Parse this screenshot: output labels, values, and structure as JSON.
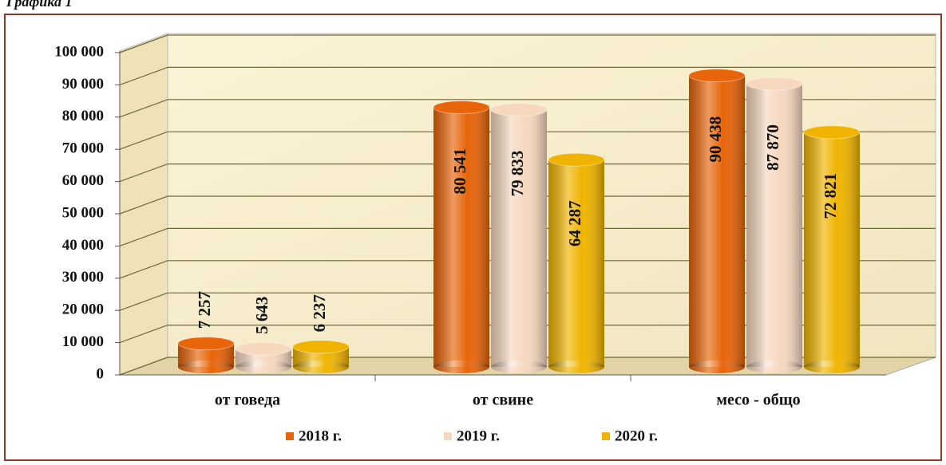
{
  "chart_data": {
    "type": "bar3d-cylinder",
    "caption": "Графика 1",
    "categories": [
      "от говеда",
      "от свине",
      "месо - общо"
    ],
    "series": [
      {
        "name": "2018 г.",
        "color": "#e8650a",
        "values": [
          7257,
          80541,
          90438
        ],
        "value_labels": [
          "7 257",
          "80 541",
          "90 438"
        ]
      },
      {
        "name": "2019 г.",
        "color": "#f6d8bf",
        "values": [
          5643,
          79833,
          87870
        ],
        "value_labels": [
          "5 643",
          "79 833",
          "87 870"
        ]
      },
      {
        "name": "2020 г.",
        "color": "#f0b400",
        "values": [
          6237,
          64287,
          72821
        ],
        "value_labels": [
          "6 237",
          "64 287",
          "72 821"
        ]
      }
    ],
    "ylim": [
      0,
      100000
    ],
    "yticks": [
      0,
      {
        "value": 10000,
        "label": "10 000"
      },
      {
        "value": 20000,
        "label": "20 000"
      },
      {
        "value": 30000,
        "label": "30 000"
      },
      {
        "value": 40000,
        "label": "40 000"
      },
      {
        "value": 50000,
        "label": "50 000"
      },
      {
        "value": 60000,
        "label": "60 000"
      },
      {
        "value": 70000,
        "label": "70 000"
      },
      {
        "value": 80000,
        "label": "80 000"
      },
      {
        "value": 90000,
        "label": "90 000"
      },
      {
        "value": 100000,
        "label": "100 000"
      }
    ],
    "grid": true,
    "legend": "bottom"
  }
}
